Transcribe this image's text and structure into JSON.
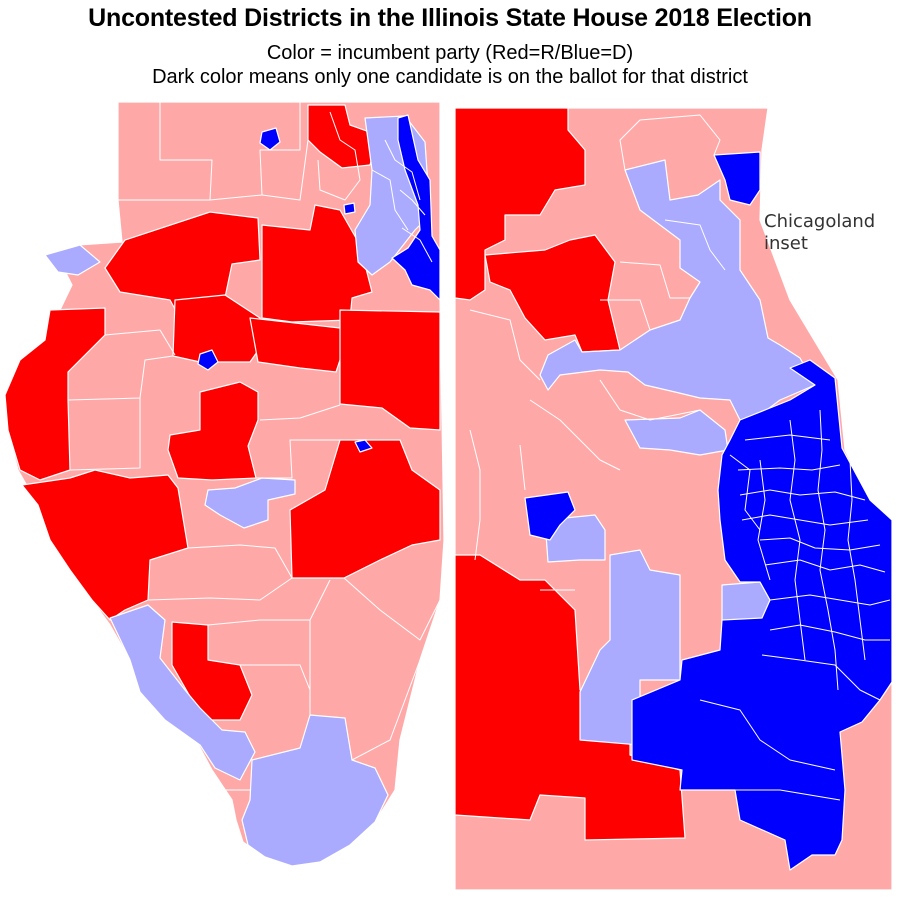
{
  "title": "Uncontested Districts in the Illinois State House 2018 Election",
  "subtitle_line1": "Color = incumbent party (Red=R/Blue=D)",
  "subtitle_line2": "Dark color means only one candidate is on the ballot for that district",
  "inset_label_line1": "Chicagoland",
  "inset_label_line2": "inset",
  "colors": {
    "republican_uncontested": "#ff0000",
    "republican_contested": "#ffa8a8",
    "democrat_uncontested": "#0000ff",
    "democrat_contested": "#aaaaff",
    "border": "#ffffff"
  }
}
